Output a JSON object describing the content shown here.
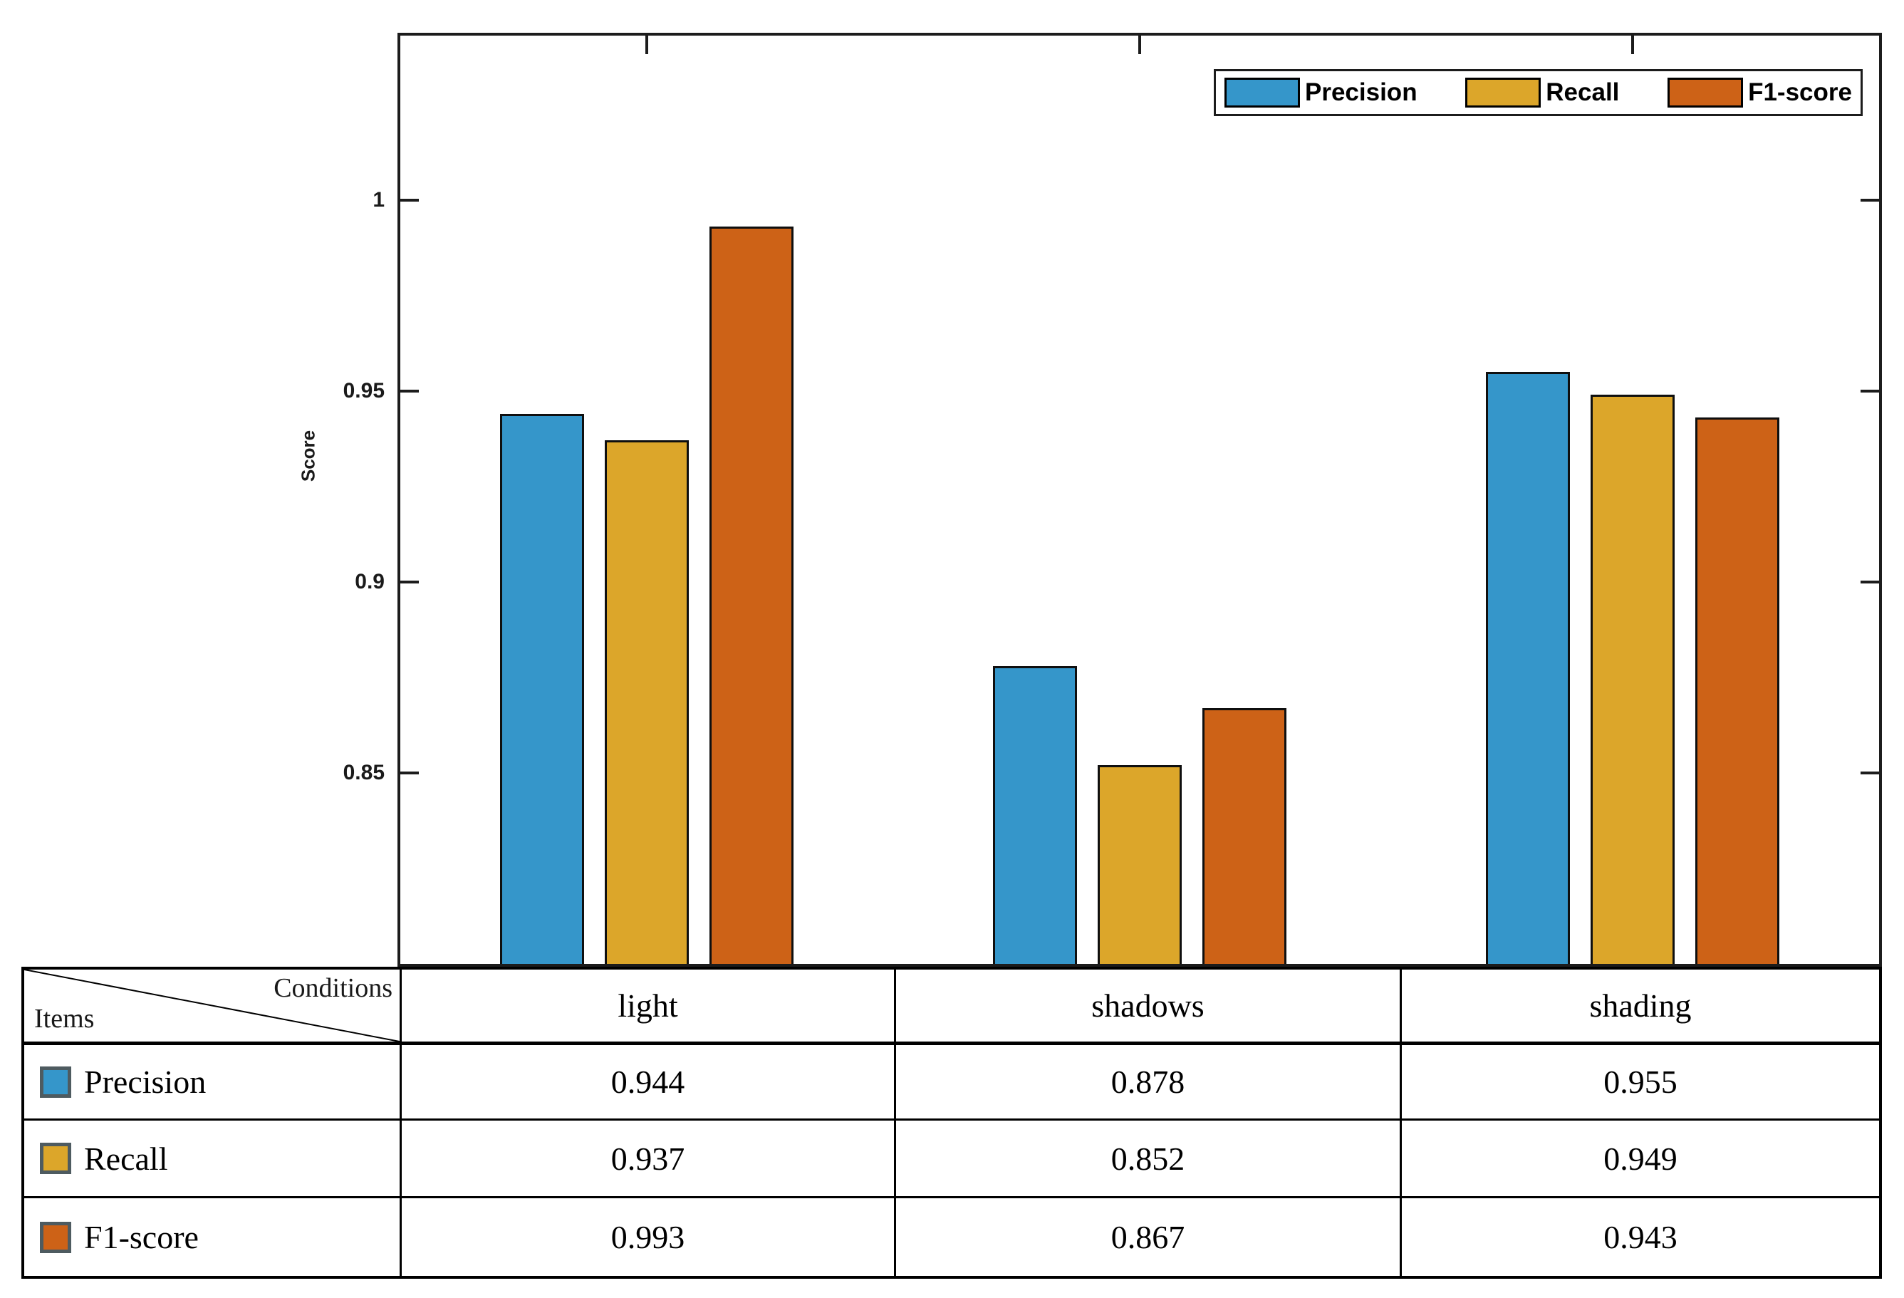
{
  "chart_data": {
    "type": "bar",
    "categories": [
      "light",
      "shadows",
      "shading"
    ],
    "series": [
      {
        "name": "Precision",
        "color": "#3596CA",
        "values": [
          0.944,
          0.878,
          0.955
        ]
      },
      {
        "name": "Recall",
        "color": "#DCA62A",
        "values": [
          0.937,
          0.852,
          0.949
        ]
      },
      {
        "name": "F1-score",
        "color": "#CD6217",
        "values": [
          0.993,
          0.867,
          0.943
        ]
      }
    ],
    "title": "",
    "xlabel": "",
    "ylabel": "Score",
    "ylim": [
      0.8,
      1.043
    ],
    "yticks": [
      0.85,
      0.9,
      0.95,
      1
    ],
    "ytick_labels": [
      "0.85",
      "0.9",
      "0.95",
      "1"
    ],
    "grid": false,
    "legend_position": "top-right"
  },
  "table": {
    "corner": {
      "top_right": "Conditions",
      "bottom_left": "Items"
    },
    "columns": [
      "light",
      "shadows",
      "shading"
    ],
    "rows": [
      {
        "label": "Precision",
        "color": "#3596CA",
        "values": [
          "0.944",
          "0.878",
          "0.955"
        ]
      },
      {
        "label": "Recall",
        "color": "#DCA62A",
        "values": [
          "0.937",
          "0.852",
          "0.949"
        ]
      },
      {
        "label": "F1-score",
        "color": "#CD6217",
        "values": [
          "0.993",
          "0.867",
          "0.943"
        ]
      }
    ]
  },
  "colors": {
    "precision": "#3596CA",
    "recall": "#DCA62A",
    "f1_score": "#CD6217",
    "axis": "#1c1c1c",
    "table_border": "#000000",
    "swatch_border": "#4e5b60"
  }
}
